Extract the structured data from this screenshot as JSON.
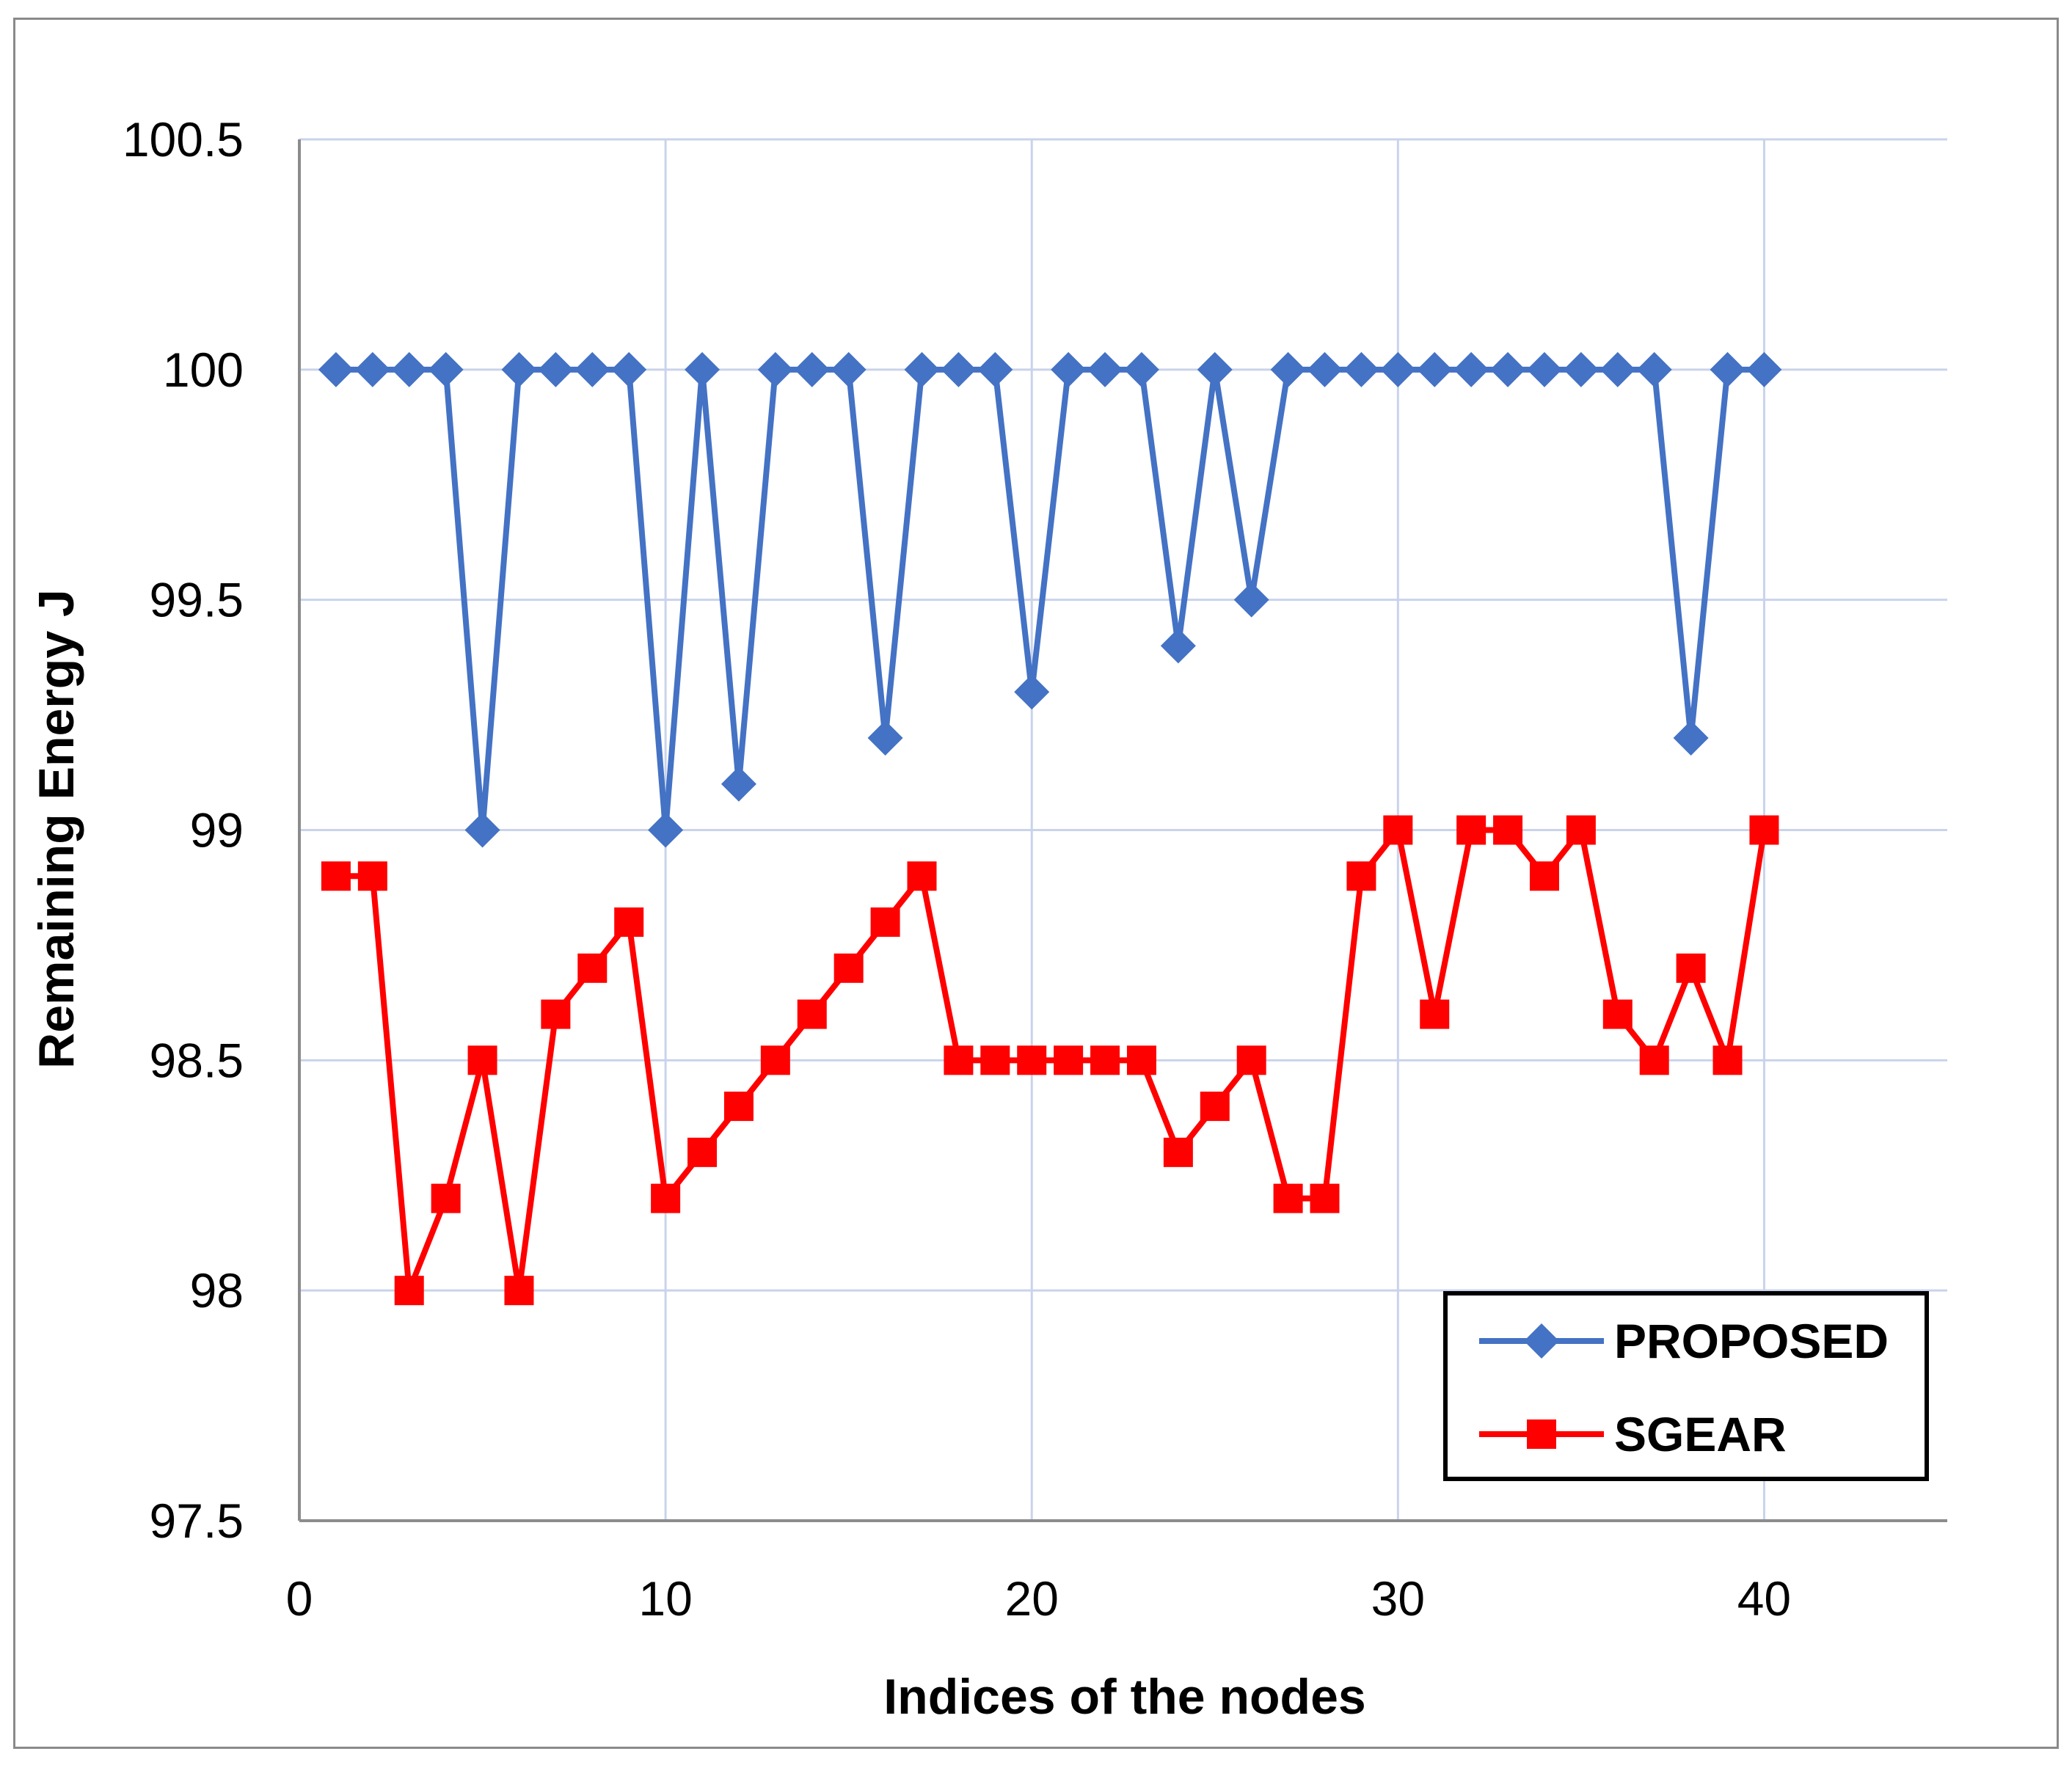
{
  "chart_data": {
    "type": "line",
    "xlabel": "Indices of the nodes",
    "ylabel": "Remaining Energy J",
    "xlim": [
      0,
      45
    ],
    "ylim": [
      97.5,
      100.5
    ],
    "x_ticks": [
      0,
      10,
      20,
      30,
      40
    ],
    "x_tick_labels": [
      "0",
      "10",
      "20",
      "30",
      "40"
    ],
    "y_ticks": [
      97.5,
      98,
      98.5,
      99,
      99.5,
      100,
      100.5
    ],
    "y_tick_labels": [
      "97.5",
      "98",
      "98.5",
      "99",
      "99.5",
      "100",
      "100.5"
    ],
    "grid": true,
    "legend_position": "bottom-right",
    "x": [
      1,
      2,
      3,
      4,
      5,
      6,
      7,
      8,
      9,
      10,
      11,
      12,
      13,
      14,
      15,
      16,
      17,
      18,
      19,
      20,
      21,
      22,
      23,
      24,
      25,
      26,
      27,
      28,
      29,
      30,
      31,
      32,
      33,
      34,
      35,
      36,
      37,
      38,
      39,
      40
    ],
    "series": [
      {
        "name": "PROPOSED",
        "color": "#4472C4",
        "marker": "diamond",
        "values": [
          100,
          100,
          100,
          100,
          99,
          100,
          100,
          100,
          100,
          99,
          100,
          99.1,
          100,
          100,
          100,
          99.2,
          100,
          100,
          100,
          99.3,
          100,
          100,
          100,
          99.4,
          100,
          99.5,
          100,
          100,
          100,
          100,
          100,
          100,
          100,
          100,
          100,
          100,
          100,
          99.2,
          100,
          100
        ]
      },
      {
        "name": "SGEAR",
        "color": "#FF0000",
        "marker": "square",
        "values": [
          98.9,
          98.9,
          98,
          98.2,
          98.5,
          98,
          98.6,
          98.7,
          98.8,
          98.2,
          98.3,
          98.4,
          98.5,
          98.6,
          98.7,
          98.8,
          98.9,
          98.5,
          98.5,
          98.5,
          98.5,
          98.5,
          98.5,
          98.3,
          98.4,
          98.5,
          98.2,
          98.2,
          98.9,
          99,
          98.6,
          99,
          99,
          98.9,
          99,
          98.6,
          98.5,
          98.7,
          98.5,
          99
        ]
      }
    ]
  }
}
